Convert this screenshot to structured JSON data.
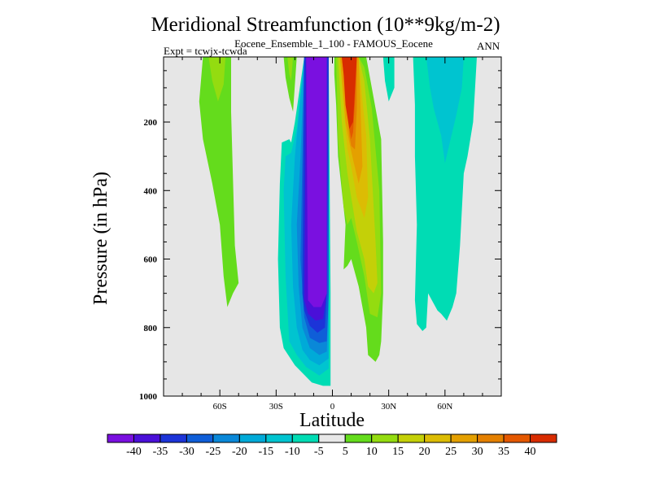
{
  "chart_data": {
    "type": "heatmap",
    "title": "Meridional Streamfunction (10**9kg/m-2)",
    "subtitle": "Eocene_Ensemble_1_100 - FAMOUS_Eocene",
    "experiment_label": "Expt = tcwjx-tcwda",
    "season": "ANN",
    "xlabel": "Latitude",
    "ylabel": "Pressure (in hPa)",
    "x_range": [
      -90,
      90
    ],
    "y_range": [
      1000,
      10
    ],
    "x_ticks": [
      {
        "value": -60,
        "label": "60S"
      },
      {
        "value": -30,
        "label": "30S"
      },
      {
        "value": 0,
        "label": "0"
      },
      {
        "value": 30,
        "label": "30N"
      },
      {
        "value": 60,
        "label": "60N"
      }
    ],
    "y_ticks": [
      {
        "value": 200,
        "label": "200"
      },
      {
        "value": 400,
        "label": "400"
      },
      {
        "value": 600,
        "label": "600"
      },
      {
        "value": 800,
        "label": "800"
      },
      {
        "value": 1000,
        "label": "1000"
      }
    ],
    "background_color": "#e6e6e6",
    "colorbar": {
      "labels": [
        "-40",
        "-35",
        "-30",
        "-25",
        "-20",
        "-15",
        "-10",
        "-5",
        "5",
        "10",
        "15",
        "20",
        "25",
        "30",
        "35",
        "40"
      ],
      "colors": [
        "#7a10e0",
        "#4a10d8",
        "#1c34d8",
        "#0f5ed8",
        "#0a88d8",
        "#00aad8",
        "#00c4d0",
        "#00dcb4",
        "#e8e8e8",
        "#64dc1c",
        "#94dc10",
        "#c4d008",
        "#dcbc04",
        "#e4a000",
        "#e48000",
        "#e45800",
        "#d82c00"
      ]
    },
    "regions": [
      {
        "value_range": "5 to 10",
        "color": "#64dc1c",
        "points": [
          [
            -69,
            10
          ],
          [
            -54,
            10
          ],
          [
            -54,
            170
          ],
          [
            -52,
            560
          ],
          [
            -50,
            670
          ],
          [
            -53,
            700
          ],
          [
            -56,
            740
          ],
          [
            -58,
            650
          ],
          [
            -60,
            500
          ],
          [
            -64,
            380
          ],
          [
            -69,
            250
          ],
          [
            -71,
            140
          ]
        ]
      },
      {
        "value_range": "10 to 15",
        "color": "#94dc10",
        "points": [
          [
            -66,
            10
          ],
          [
            -57,
            10
          ],
          [
            -58,
            90
          ],
          [
            -61,
            140
          ],
          [
            -64,
            80
          ]
        ]
      },
      {
        "value_range": "5 to 10",
        "color": "#64dc1c",
        "points": [
          [
            -26,
            10
          ],
          [
            -19,
            10
          ],
          [
            -20,
            90
          ],
          [
            -21,
            170
          ],
          [
            -23,
            130
          ],
          [
            -25,
            70
          ]
        ]
      },
      {
        "value_range": "10 to 15",
        "color": "#94dc10",
        "points": [
          [
            -24,
            10
          ],
          [
            -21,
            10
          ],
          [
            -22,
            80
          ],
          [
            -23,
            60
          ]
        ]
      },
      {
        "value_range": "-10 to -5",
        "color": "#00dcb4",
        "points": [
          [
            -28,
            380
          ],
          [
            -27,
            260
          ],
          [
            -23,
            250
          ],
          [
            -22,
            260
          ],
          [
            -20,
            200
          ],
          [
            -15,
            10
          ],
          [
            -2,
            10
          ],
          [
            -1,
            700
          ],
          [
            -1,
            780
          ],
          [
            -1,
            970
          ],
          [
            -5,
            970
          ],
          [
            -11,
            960
          ],
          [
            -20,
            910
          ],
          [
            -26,
            860
          ],
          [
            -28,
            800
          ],
          [
            -29,
            600
          ]
        ]
      },
      {
        "value_range": "-15 to -10",
        "color": "#00c4d0",
        "points": [
          [
            -26,
            400
          ],
          [
            -25,
            300
          ],
          [
            -22,
            290
          ],
          [
            -19,
            220
          ],
          [
            -15,
            10
          ],
          [
            -2,
            10
          ],
          [
            -2,
            700
          ],
          [
            -2,
            920
          ],
          [
            -7,
            940
          ],
          [
            -14,
            915
          ],
          [
            -19,
            880
          ],
          [
            -23,
            840
          ],
          [
            -25,
            650
          ]
        ]
      },
      {
        "value_range": "-20 to -15",
        "color": "#00aad8",
        "points": [
          [
            -22,
            500
          ],
          [
            -20,
            300
          ],
          [
            -15,
            10
          ],
          [
            -2,
            10
          ],
          [
            -2,
            700
          ],
          [
            -2,
            890
          ],
          [
            -7,
            910
          ],
          [
            -12,
            895
          ],
          [
            -16,
            865
          ],
          [
            -19,
            800
          ],
          [
            -21,
            680
          ]
        ]
      },
      {
        "value_range": "-25 to -20",
        "color": "#0a88d8",
        "points": [
          [
            -19,
            500
          ],
          [
            -17,
            300
          ],
          [
            -15,
            10
          ],
          [
            -2,
            10
          ],
          [
            -2,
            700
          ],
          [
            -3,
            870
          ],
          [
            -7,
            880
          ],
          [
            -12,
            860
          ],
          [
            -16,
            800
          ],
          [
            -18,
            680
          ]
        ]
      },
      {
        "value_range": "-30 to -25",
        "color": "#0f5ed8",
        "points": [
          [
            -17,
            600
          ],
          [
            -16,
            300
          ],
          [
            -15,
            10
          ],
          [
            -2,
            10
          ],
          [
            -2,
            700
          ],
          [
            -3,
            840
          ],
          [
            -7,
            845
          ],
          [
            -12,
            830
          ],
          [
            -15,
            770
          ]
        ]
      },
      {
        "value_range": "-35 to -30",
        "color": "#1c34d8",
        "points": [
          [
            -16,
            700
          ],
          [
            -15,
            10
          ],
          [
            -2,
            10
          ],
          [
            -3,
            700
          ],
          [
            -4,
            800
          ],
          [
            -8,
            815
          ],
          [
            -12,
            795
          ],
          [
            -15,
            750
          ]
        ]
      },
      {
        "value_range": "-40 to -35",
        "color": "#4a10d8",
        "points": [
          [
            -15,
            720
          ],
          [
            -14,
            10
          ],
          [
            -3,
            10
          ],
          [
            -3,
            700
          ],
          [
            -5,
            775
          ],
          [
            -9,
            780
          ],
          [
            -13,
            760
          ]
        ]
      },
      {
        "value_range": "< -40",
        "color": "#7a10e0",
        "points": [
          [
            -14,
            10
          ],
          [
            -3,
            10
          ],
          [
            -3,
            700
          ],
          [
            -6,
            740
          ],
          [
            -10,
            740
          ],
          [
            -13,
            720
          ]
        ]
      },
      {
        "value_range": "5 to 10",
        "color": "#64dc1c",
        "points": [
          [
            1,
            10
          ],
          [
            14,
            10
          ],
          [
            18,
            10
          ],
          [
            21,
            100
          ],
          [
            26,
            250
          ],
          [
            27,
            550
          ],
          [
            27,
            700
          ],
          [
            26,
            840
          ],
          [
            25,
            880
          ],
          [
            23,
            900
          ],
          [
            19,
            880
          ],
          [
            18,
            800
          ],
          [
            14,
            680
          ],
          [
            10,
            600
          ],
          [
            8,
            620
          ],
          [
            6,
            630
          ],
          [
            7,
            500
          ],
          [
            3,
            300
          ],
          [
            2,
            150
          ],
          [
            1,
            60
          ]
        ]
      },
      {
        "value_range": "10 to 15",
        "color": "#94dc10",
        "points": [
          [
            2,
            10
          ],
          [
            14,
            10
          ],
          [
            17,
            40
          ],
          [
            21,
            160
          ],
          [
            25,
            400
          ],
          [
            26,
            700
          ],
          [
            24,
            770
          ],
          [
            20,
            760
          ],
          [
            17,
            650
          ],
          [
            13,
            550
          ],
          [
            10,
            480
          ],
          [
            8,
            500
          ],
          [
            6,
            450
          ],
          [
            3,
            250
          ]
        ]
      },
      {
        "value_range": "15 to 20",
        "color": "#c4d008",
        "points": [
          [
            3,
            10
          ],
          [
            14,
            10
          ],
          [
            17,
            80
          ],
          [
            20,
            250
          ],
          [
            23,
            550
          ],
          [
            24,
            670
          ],
          [
            22,
            700
          ],
          [
            19,
            680
          ],
          [
            17,
            600
          ],
          [
            13,
            520
          ],
          [
            10,
            420
          ],
          [
            8,
            350
          ],
          [
            5,
            200
          ]
        ]
      },
      {
        "value_range": "20 to 25",
        "color": "#dcbc04",
        "points": [
          [
            4,
            10
          ],
          [
            14,
            10
          ],
          [
            16,
            140
          ],
          [
            18,
            240
          ],
          [
            19,
            420
          ],
          [
            17,
            480
          ],
          [
            13,
            420
          ],
          [
            10,
            330
          ],
          [
            8,
            280
          ],
          [
            6,
            160
          ]
        ]
      },
      {
        "value_range": "25 to 30",
        "color": "#e4a000",
        "points": [
          [
            4,
            10
          ],
          [
            14,
            10
          ],
          [
            15,
            160
          ],
          [
            16,
            330
          ],
          [
            14,
            380
          ],
          [
            11,
            310
          ],
          [
            9,
            260
          ],
          [
            7,
            200
          ],
          [
            6,
            130
          ]
        ]
      },
      {
        "value_range": "30 to 35",
        "color": "#e48000",
        "points": [
          [
            5,
            10
          ],
          [
            13,
            10
          ],
          [
            13,
            160
          ],
          [
            12,
            280
          ],
          [
            10,
            270
          ],
          [
            9,
            240
          ],
          [
            8,
            170
          ],
          [
            7,
            90
          ]
        ]
      },
      {
        "value_range": "35 to 40",
        "color": "#e45800",
        "points": [
          [
            5,
            10
          ],
          [
            13,
            10
          ],
          [
            12,
            140
          ],
          [
            11,
            230
          ],
          [
            10,
            250
          ],
          [
            9,
            220
          ],
          [
            8,
            150
          ],
          [
            6,
            60
          ]
        ]
      },
      {
        "value_range": "> 40",
        "color": "#d82c00",
        "points": [
          [
            5,
            10
          ],
          [
            13,
            10
          ],
          [
            11,
            200
          ],
          [
            9,
            220
          ],
          [
            7,
            150
          ],
          [
            6,
            60
          ]
        ]
      },
      {
        "value_range": "-10 to -5",
        "color": "#00dcb4",
        "points": [
          [
            27,
            10
          ],
          [
            33,
            10
          ],
          [
            33,
            100
          ],
          [
            30,
            140
          ],
          [
            28,
            80
          ]
        ]
      },
      {
        "value_range": "-10 to -5",
        "color": "#00dcb4",
        "points": [
          [
            43,
            10
          ],
          [
            77,
            10
          ],
          [
            75,
            200
          ],
          [
            72,
            300
          ],
          [
            70,
            350
          ],
          [
            68,
            560
          ],
          [
            66,
            700
          ],
          [
            64,
            740
          ],
          [
            61,
            780
          ],
          [
            58,
            760
          ],
          [
            56,
            750
          ],
          [
            53,
            720
          ],
          [
            51,
            700
          ],
          [
            50,
            800
          ],
          [
            48,
            810
          ],
          [
            45,
            790
          ],
          [
            44,
            720
          ],
          [
            45,
            500
          ],
          [
            44,
            300
          ],
          [
            44,
            150
          ]
        ]
      },
      {
        "value_range": "-15 to -10",
        "color": "#00c4d0",
        "points": [
          [
            50,
            10
          ],
          [
            70,
            10
          ],
          [
            69,
            100
          ],
          [
            66,
            180
          ],
          [
            60,
            320
          ],
          [
            58,
            240
          ],
          [
            54,
            160
          ],
          [
            52,
            100
          ]
        ]
      }
    ]
  }
}
